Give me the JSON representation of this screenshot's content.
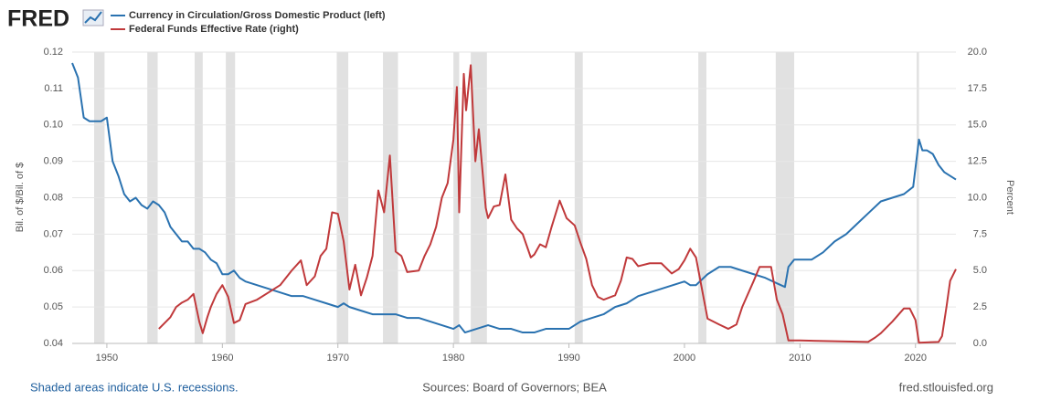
{
  "header": {
    "logo": "FRED"
  },
  "chart_data": {
    "type": "line",
    "y_label": "Bil. of $/Bil. of $",
    "y2_label": "Percent",
    "xlim": [
      1947,
      2023.5
    ],
    "xticks": [
      1950,
      1960,
      1970,
      1980,
      1990,
      2000,
      2010,
      2020
    ],
    "ylim": [
      0.04,
      0.12
    ],
    "yticks": [
      0.04,
      0.05,
      0.06,
      0.07,
      0.08,
      0.09,
      {
        "value": 0.1,
        "label": "0.10"
      },
      0.11,
      0.12
    ],
    "y2lim": [
      0,
      20
    ],
    "y2ticks": [
      {
        "value": 0,
        "label": "0.0"
      },
      2.5,
      {
        "value": 5,
        "label": "5.0"
      },
      7.5,
      {
        "value": 10,
        "label": "10.0"
      },
      12.5,
      {
        "value": 15,
        "label": "15.0"
      },
      17.5,
      {
        "value": 20,
        "label": "20.0"
      }
    ],
    "grid": true,
    "recessions": [
      [
        1948.9,
        1949.8
      ],
      [
        1953.5,
        1954.4
      ],
      [
        1957.6,
        1958.3
      ],
      [
        1960.3,
        1961.1
      ],
      [
        1969.9,
        1970.9
      ],
      [
        1973.9,
        1975.2
      ],
      [
        1980.0,
        1980.5
      ],
      [
        1981.5,
        1982.9
      ],
      [
        1990.5,
        1991.2
      ],
      [
        2001.2,
        2001.9
      ],
      [
        2007.9,
        2009.5
      ],
      [
        2020.1,
        2020.3
      ]
    ],
    "series": [
      {
        "name": "Currency in Circulation/Gross Domestic Product (left)",
        "color": "#2a72b0",
        "axis": "y",
        "x": [
          1947,
          1947.5,
          1948,
          1948.5,
          1949,
          1949.5,
          1950,
          1950.5,
          1951,
          1951.5,
          1952,
          1952.5,
          1953,
          1953.5,
          1954,
          1954.5,
          1955,
          1955.5,
          1956,
          1956.5,
          1957,
          1957.5,
          1958,
          1958.5,
          1959,
          1959.5,
          1960,
          1960.5,
          1961,
          1961.5,
          1962,
          1963,
          1964,
          1965,
          1966,
          1967,
          1968,
          1969,
          1970,
          1970.5,
          1971,
          1972,
          1973,
          1974,
          1975,
          1976,
          1977,
          1978,
          1979,
          1980,
          1980.5,
          1981,
          1982,
          1983,
          1984,
          1985,
          1986,
          1987,
          1988,
          1989,
          1990,
          1991,
          1992,
          1993,
          1994,
          1995,
          1996,
          1997,
          1998,
          1999,
          2000,
          2000.5,
          2001,
          2002,
          2003,
          2004,
          2005,
          2006,
          2007,
          2008,
          2008.7,
          2009,
          2009.5,
          2010,
          2011,
          2012,
          2013,
          2014,
          2015,
          2016,
          2017,
          2018,
          2019,
          2019.8,
          2020.3,
          2020.6,
          2021,
          2021.5,
          2022,
          2022.5,
          2023,
          2023.5
        ],
        "values": [
          0.117,
          0.113,
          0.102,
          0.101,
          0.101,
          0.101,
          0.102,
          0.09,
          0.086,
          0.081,
          0.079,
          0.08,
          0.078,
          0.077,
          0.079,
          0.078,
          0.076,
          0.072,
          0.07,
          0.068,
          0.068,
          0.066,
          0.066,
          0.065,
          0.063,
          0.062,
          0.059,
          0.059,
          0.06,
          0.058,
          0.057,
          0.056,
          0.055,
          0.054,
          0.053,
          0.053,
          0.052,
          0.051,
          0.05,
          0.051,
          0.05,
          0.049,
          0.048,
          0.048,
          0.048,
          0.047,
          0.047,
          0.046,
          0.045,
          0.044,
          0.045,
          0.043,
          0.044,
          0.045,
          0.044,
          0.044,
          0.043,
          0.043,
          0.044,
          0.044,
          0.044,
          0.046,
          0.047,
          0.048,
          0.05,
          0.051,
          0.053,
          0.054,
          0.055,
          0.056,
          0.057,
          0.056,
          0.056,
          0.059,
          0.061,
          0.061,
          0.06,
          0.059,
          0.058,
          0.0565,
          0.0555,
          0.061,
          0.063,
          0.063,
          0.063,
          0.065,
          0.068,
          0.07,
          0.073,
          0.076,
          0.079,
          0.08,
          0.081,
          0.083,
          0.096,
          0.093,
          0.093,
          0.092,
          0.089,
          0.087,
          0.086,
          0.085
        ]
      },
      {
        "name": "Federal Funds Effective Rate (right)",
        "color": "#c0393b",
        "axis": "y2",
        "x": [
          1954.5,
          1955,
          1955.5,
          1956,
          1956.5,
          1957,
          1957.5,
          1958,
          1958.3,
          1958.7,
          1959,
          1959.5,
          1960,
          1960.5,
          1961,
          1961.5,
          1962,
          1963,
          1964,
          1965,
          1966,
          1966.8,
          1967.3,
          1968,
          1968.5,
          1969,
          1969.5,
          1970,
          1970.5,
          1971,
          1971.5,
          1972,
          1972.5,
          1973,
          1973.5,
          1974,
          1974.5,
          1975,
          1975.5,
          1976,
          1977,
          1977.5,
          1978,
          1978.5,
          1979,
          1979.5,
          1980,
          1980.3,
          1980.5,
          1980.9,
          1981.1,
          1981.5,
          1981.9,
          1982.2,
          1982.8,
          1983,
          1983.5,
          1984,
          1984.5,
          1985,
          1985.5,
          1986,
          1986.7,
          1987,
          1987.5,
          1988,
          1988.5,
          1989.2,
          1989.8,
          1990.5,
          1991,
          1991.5,
          1992,
          1992.5,
          1993,
          1994,
          1994.5,
          1995,
          1995.5,
          1996,
          1997,
          1998,
          1998.9,
          1999.5,
          2000,
          2000.5,
          2001,
          2001.5,
          2002,
          2003,
          2003.8,
          2004.5,
          2005,
          2006,
          2006.5,
          2007.5,
          2008,
          2008.5,
          2009,
          2010,
          2015.9,
          2016.5,
          2017,
          2018,
          2019,
          2019.5,
          2020,
          2020.3,
          2022,
          2022.3,
          2022.7,
          2023,
          2023.5
        ],
        "values": [
          1.0,
          1.4,
          1.8,
          2.5,
          2.8,
          3.0,
          3.4,
          1.5,
          0.7,
          1.8,
          2.5,
          3.4,
          4.0,
          3.2,
          1.4,
          1.6,
          2.7,
          3.0,
          3.5,
          4.0,
          5.0,
          5.7,
          4.0,
          4.6,
          6.0,
          6.5,
          9.0,
          8.9,
          7.0,
          3.7,
          5.4,
          3.3,
          4.5,
          6.0,
          10.5,
          9.0,
          12.9,
          6.3,
          6.0,
          4.9,
          5.0,
          6.0,
          6.8,
          8.0,
          10.0,
          11.0,
          14.0,
          17.6,
          9.0,
          18.5,
          16.0,
          19.1,
          12.5,
          14.7,
          9.3,
          8.6,
          9.4,
          9.5,
          11.6,
          8.5,
          7.9,
          7.5,
          5.9,
          6.1,
          6.8,
          6.6,
          8.0,
          9.8,
          8.6,
          8.1,
          6.9,
          5.8,
          4.0,
          3.2,
          3.0,
          3.3,
          4.3,
          5.9,
          5.8,
          5.3,
          5.5,
          5.5,
          4.8,
          5.1,
          5.7,
          6.5,
          5.9,
          3.8,
          1.7,
          1.3,
          1.0,
          1.3,
          2.5,
          4.3,
          5.25,
          5.25,
          3.0,
          2.0,
          0.2,
          0.2,
          0.1,
          0.4,
          0.7,
          1.5,
          2.4,
          2.4,
          1.6,
          0.05,
          0.1,
          0.5,
          2.6,
          4.3,
          5.1
        ]
      }
    ]
  },
  "footer": {
    "note": "Shaded areas indicate U.S. recessions.",
    "sources": "Sources: Board of Governors; BEA",
    "site": "fred.stlouisfed.org"
  }
}
